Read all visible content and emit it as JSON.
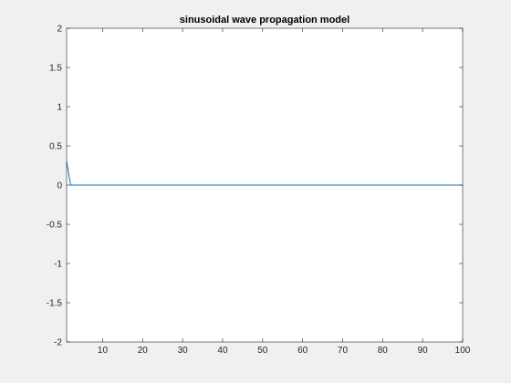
{
  "chart_data": {
    "type": "line",
    "title": "sinusoidal wave propagation model",
    "xlabel": "",
    "ylabel": "",
    "xlim": [
      1,
      100
    ],
    "ylim": [
      -2,
      2
    ],
    "xticks": [
      10,
      20,
      30,
      40,
      50,
      60,
      70,
      80,
      90,
      100
    ],
    "xtick_labels": [
      "10",
      "20",
      "30",
      "40",
      "50",
      "60",
      "70",
      "80",
      "90",
      "100"
    ],
    "yticks": [
      -2,
      -1.5,
      -1,
      -0.5,
      0,
      0.5,
      1,
      1.5,
      2
    ],
    "ytick_labels": [
      "-2",
      "-1.5",
      "-1",
      "-0.5",
      "0",
      "0.5",
      "1",
      "1.5",
      "2"
    ],
    "grid": false,
    "series": [
      {
        "color": "#0072bd",
        "points": [
          [
            1,
            0.3
          ],
          [
            2,
            0
          ],
          [
            100,
            0
          ]
        ]
      }
    ]
  },
  "colors": {
    "figure_background": "#f0f0f0",
    "axes_background": "#ffffff",
    "axes_border": "#262626",
    "line": "#0072bd"
  }
}
